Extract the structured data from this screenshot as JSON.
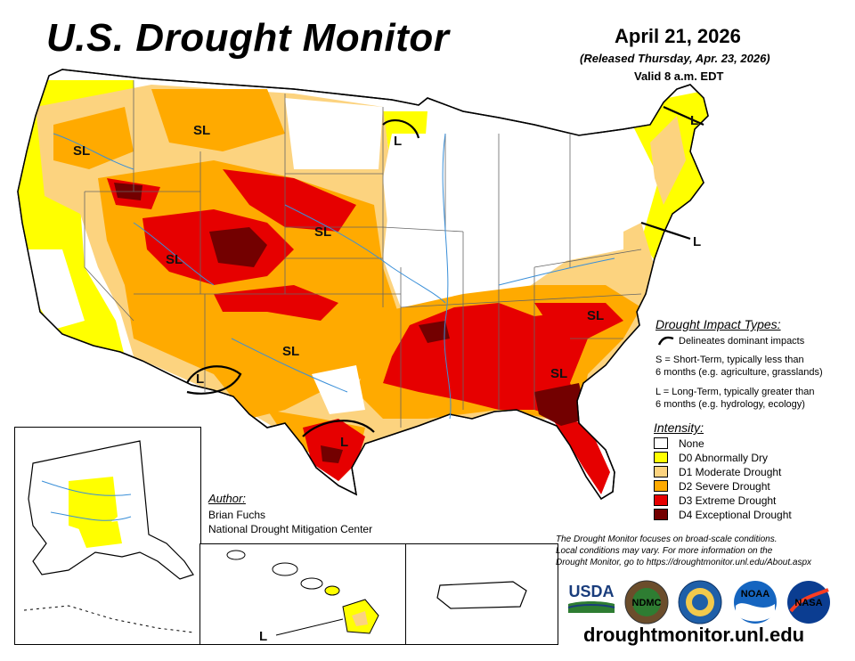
{
  "header": {
    "title": "U.S. Drought Monitor",
    "date": "April 21, 2026",
    "released": "(Released Thursday, Apr. 23, 2026)",
    "valid": "Valid 8 a.m. EDT"
  },
  "impact_types": {
    "title": "Drought Impact Types:",
    "delineates": "Delineates dominant impacts",
    "short_term_line1": "S = Short-Term, typically less than",
    "short_term_line2": "6 months (e.g. agriculture, grasslands)",
    "long_term_line1": "L = Long-Term, typically greater than",
    "long_term_line2": "6 months (e.g. hydrology, ecology)"
  },
  "intensity": {
    "title": "Intensity:",
    "levels": [
      {
        "label": "None",
        "color": "#ffffff"
      },
      {
        "label": "D0 Abnormally Dry",
        "color": "#ffff00"
      },
      {
        "label": "D1 Moderate Drought",
        "color": "#fcd37f"
      },
      {
        "label": "D2 Severe Drought",
        "color": "#ffaa00"
      },
      {
        "label": "D3 Extreme Drought",
        "color": "#e60000"
      },
      {
        "label": "D4 Exceptional Drought",
        "color": "#730000"
      }
    ]
  },
  "author": {
    "label": "Author:",
    "name": "Brian Fuchs",
    "org": "National Drought Mitigation Center"
  },
  "note": {
    "line1": "The Drought Monitor focuses on broad-scale conditions.",
    "line2": "Local conditions may vary. For more information on the",
    "line3": "Drought Monitor, go to https://droughtmonitor.unl.edu/About.aspx"
  },
  "map_labels": {
    "sl": "SL",
    "l": "L"
  },
  "logos": {
    "usda": "USDA",
    "ndmc": "NDMC",
    "noaa": "NOAA",
    "nasa": "NASA"
  },
  "website": "droughtmonitor.unl.edu"
}
